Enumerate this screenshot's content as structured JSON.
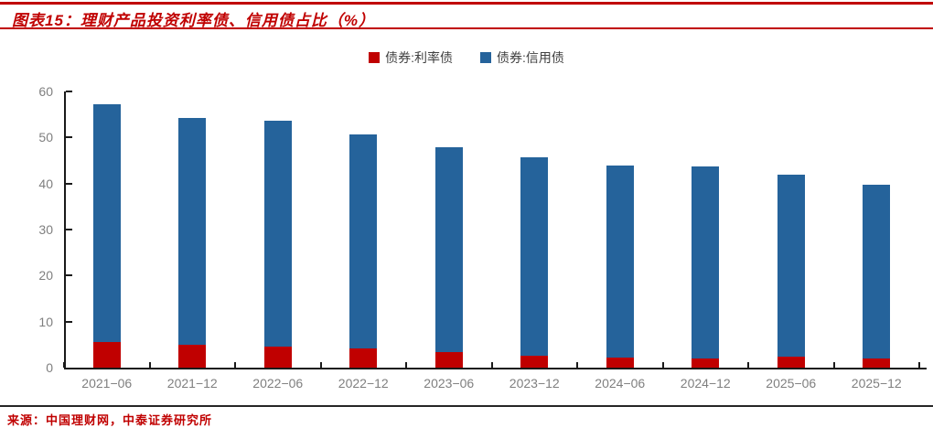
{
  "figure": {
    "title": "图表15：理财产品投资利率债、信用债占比（%）",
    "source": "来源：中国理财网，中泰证券研究所",
    "accent_color": "#C00000"
  },
  "legend": [
    {
      "label": "债券:利率债",
      "color": "#C00000"
    },
    {
      "label": "债券:信用债",
      "color": "#25639B"
    }
  ],
  "chart_data": {
    "type": "bar",
    "stacked": true,
    "title": "图表15：理财产品投资利率债、信用债占比（%）",
    "xlabel": "",
    "ylabel": "",
    "ylim": [
      0,
      60
    ],
    "yticks": [
      0,
      10,
      20,
      30,
      40,
      50,
      60
    ],
    "grid": false,
    "legend_position": "top-center",
    "categories": [
      "2021−06",
      "2021−12",
      "2022−06",
      "2022−12",
      "2023−06",
      "2023−12",
      "2024−06",
      "2024−12",
      "2025−06",
      "2025−12"
    ],
    "series": [
      {
        "name": "债券:利率债",
        "color": "#C00000",
        "values": [
          5.5,
          5.0,
          4.6,
          4.1,
          3.3,
          2.6,
          2.1,
          1.9,
          2.3,
          2.0
        ]
      },
      {
        "name": "债券:信用债",
        "color": "#25639B",
        "values": [
          51.7,
          49.2,
          49.0,
          46.5,
          44.6,
          43.0,
          41.9,
          41.8,
          39.6,
          37.8
        ]
      }
    ],
    "totals": [
      57.2,
      54.2,
      53.6,
      50.6,
      47.9,
      45.6,
      44.0,
      43.7,
      41.9,
      39.8
    ]
  }
}
